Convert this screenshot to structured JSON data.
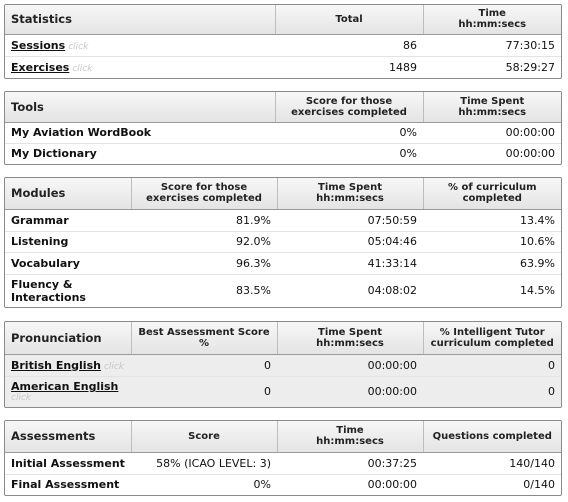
{
  "statistics": {
    "headers": [
      "Statistics",
      "Total",
      "Time",
      "hh:mm:secs"
    ],
    "rows": [
      {
        "label": "Sessions",
        "hint": "click",
        "total": "86",
        "time": "77:30:15"
      },
      {
        "label": "Exercises",
        "hint": "click",
        "total": "1489",
        "time": "58:29:27"
      }
    ]
  },
  "tools": {
    "headers": [
      "Tools",
      "Score for those",
      "exercises completed",
      "Time Spent",
      "hh:mm:secs"
    ],
    "rows": [
      {
        "label": "My Aviation WordBook",
        "score": "0%",
        "time": "00:00:00"
      },
      {
        "label": "My Dictionary",
        "score": "0%",
        "time": "00:00:00"
      }
    ]
  },
  "modules": {
    "headers": [
      "Modules",
      "Score for those",
      "exercises completed",
      "Time Spent",
      "hh:mm:secs",
      "% of curriculum",
      "completed"
    ],
    "rows": [
      {
        "label": "Grammar",
        "score": "81.9%",
        "time": "07:50:59",
        "pct": "13.4%"
      },
      {
        "label": "Listening",
        "score": "92.0%",
        "time": "05:04:46",
        "pct": "10.6%"
      },
      {
        "label": "Vocabulary",
        "score": "96.3%",
        "time": "41:33:14",
        "pct": "63.9%"
      },
      {
        "label1": "Fluency &",
        "label2": "Interactions",
        "score": "83.5%",
        "time": "04:08:02",
        "pct": "14.5%"
      }
    ]
  },
  "pronunciation": {
    "headers": [
      "Pronunciation",
      "Best Assessment Score",
      "%",
      "Time Spent",
      "hh:mm:secs",
      "% Intelligent Tutor",
      "curriculum completed"
    ],
    "rows": [
      {
        "label": "British English",
        "hint": "click",
        "score": "0",
        "time": "00:00:00",
        "pct": "0"
      },
      {
        "label": "American English",
        "hint": "click",
        "score": "0",
        "time": "00:00:00",
        "pct": "0"
      }
    ]
  },
  "assessments": {
    "headers": [
      "Assessments",
      "Score",
      "Time",
      "hh:mm:secs",
      "Questions completed"
    ],
    "rows": [
      {
        "label": "Initial Assessment",
        "score": "58% (ICAO LEVEL: 3)",
        "time": "00:37:25",
        "questions": "140/140"
      },
      {
        "label": "Final Assessment",
        "score": "0%",
        "time": "00:00:00",
        "questions": "0/140"
      }
    ]
  }
}
